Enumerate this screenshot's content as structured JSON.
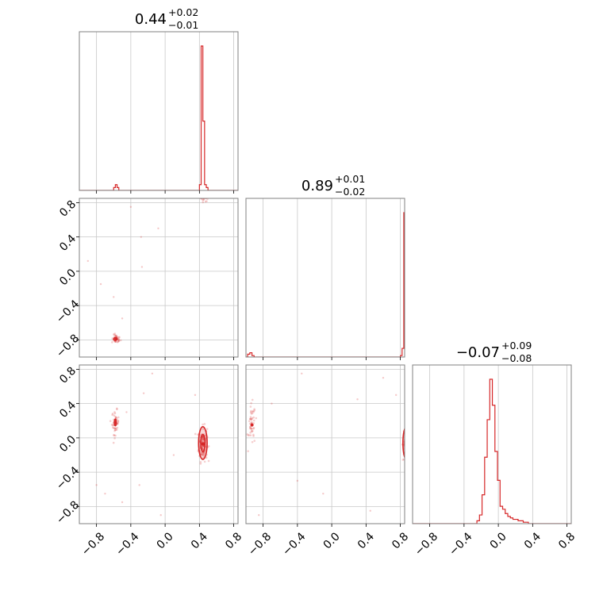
{
  "colors": {
    "accent": "#d62728",
    "grid": "#c8c8c8",
    "frame": "#808080",
    "text": "#000000"
  },
  "tick_labels": [
    "−0.8",
    "−0.4",
    "0.0",
    "0.4",
    "0.8"
  ],
  "titles": [
    {
      "value": "0.44",
      "plus": "+0.02",
      "minus": "−0.01"
    },
    {
      "value": "0.89",
      "plus": "+0.01",
      "minus": "−0.02"
    },
    {
      "value": "−0.07",
      "plus": "+0.09",
      "minus": "−0.08"
    }
  ],
  "chart_data": {
    "type": "corner",
    "parameters": 3,
    "axis_range": [
      -1.0,
      0.85
    ],
    "ticks": [
      -0.8,
      -0.4,
      0.0,
      0.4,
      0.8
    ],
    "grid": true,
    "histograms": [
      {
        "parameter": 0,
        "median": 0.44,
        "err_plus": 0.02,
        "err_minus": 0.01,
        "bins": [
          [
            -0.6,
            -0.58,
            0.02
          ],
          [
            -0.58,
            -0.56,
            0.04
          ],
          [
            -0.56,
            -0.54,
            0.02
          ],
          [
            0.4,
            0.42,
            0.04
          ],
          [
            0.42,
            0.44,
            1.0
          ],
          [
            0.44,
            0.46,
            0.48
          ],
          [
            0.46,
            0.48,
            0.04
          ],
          [
            0.48,
            0.5,
            0.02
          ]
        ]
      },
      {
        "parameter": 1,
        "median": 0.89,
        "err_plus": 0.01,
        "err_minus": 0.02,
        "bins": [
          [
            -0.98,
            -0.955,
            0.02
          ],
          [
            -0.955,
            -0.93,
            0.03
          ],
          [
            -0.93,
            -0.905,
            0.01
          ],
          [
            0.8,
            0.82,
            0.01
          ],
          [
            0.82,
            0.84,
            0.06
          ],
          [
            0.84,
            0.86,
            1.0
          ],
          [
            0.86,
            0.88,
            1.0
          ],
          [
            0.88,
            0.9,
            0.03
          ]
        ]
      },
      {
        "parameter": 2,
        "median": -0.07,
        "err_plus": 0.09,
        "err_minus": 0.08,
        "bins": [
          [
            -0.25,
            -0.22,
            0.02
          ],
          [
            -0.22,
            -0.19,
            0.06
          ],
          [
            -0.19,
            -0.16,
            0.2
          ],
          [
            -0.16,
            -0.13,
            0.46
          ],
          [
            -0.13,
            -0.1,
            0.72
          ],
          [
            -0.1,
            -0.07,
            1.0
          ],
          [
            -0.07,
            -0.04,
            0.82
          ],
          [
            -0.04,
            -0.01,
            0.5
          ],
          [
            -0.01,
            0.02,
            0.3
          ],
          [
            0.02,
            0.05,
            0.12
          ],
          [
            0.05,
            0.08,
            0.1
          ],
          [
            0.08,
            0.11,
            0.07
          ],
          [
            0.11,
            0.14,
            0.05
          ],
          [
            0.14,
            0.17,
            0.04
          ],
          [
            0.17,
            0.2,
            0.03
          ],
          [
            0.2,
            0.23,
            0.03
          ],
          [
            0.23,
            0.26,
            0.02
          ],
          [
            0.26,
            0.29,
            0.02
          ],
          [
            0.29,
            0.32,
            0.01
          ],
          [
            0.32,
            0.35,
            0.01
          ]
        ]
      }
    ],
    "scatter_panels": [
      {
        "x_param": 0,
        "y_param": 1,
        "clusters": [
          {
            "x": 0.45,
            "y": 0.88,
            "sx": 0.03,
            "sy": 0.03,
            "tilt": -0.3,
            "n": 70
          },
          {
            "x": -0.57,
            "y": -0.79,
            "sx": 0.025,
            "sy": 0.025,
            "tilt": 0.0,
            "n": 40
          }
        ],
        "outliers": [
          [
            -0.75,
            -0.15
          ],
          [
            -0.6,
            -0.3
          ],
          [
            -0.28,
            0.4
          ],
          [
            -0.27,
            0.05
          ],
          [
            -0.4,
            0.75
          ],
          [
            -0.08,
            0.5
          ],
          [
            -0.9,
            0.12
          ],
          [
            -0.5,
            -0.55
          ]
        ],
        "contours": [
          {
            "x": 0.45,
            "y": 0.88,
            "rx": 0.045,
            "ry": 0.028
          },
          {
            "x": -0.58,
            "y": -0.79,
            "rx": 0.02,
            "ry": 0.015
          }
        ]
      },
      {
        "x_param": 0,
        "y_param": 2,
        "clusters": [
          {
            "x": 0.44,
            "y": -0.07,
            "sx": 0.025,
            "sy": 0.1,
            "tilt": 0.0,
            "n": 130
          },
          {
            "x": -0.58,
            "y": 0.18,
            "sx": 0.02,
            "sy": 0.07,
            "tilt": 0.0,
            "n": 50
          }
        ],
        "outliers": [
          [
            -0.8,
            -0.55
          ],
          [
            -0.7,
            -0.65
          ],
          [
            -0.5,
            -0.75
          ],
          [
            -0.3,
            -0.55
          ],
          [
            -0.45,
            0.3
          ],
          [
            -0.25,
            0.52
          ],
          [
            0.1,
            -0.2
          ],
          [
            -0.05,
            -0.9
          ],
          [
            0.35,
            0.5
          ],
          [
            -0.15,
            0.75
          ]
        ],
        "contours": [
          {
            "x": 0.44,
            "y": -0.06,
            "rx": 0.05,
            "ry": 0.19
          },
          {
            "x": 0.44,
            "y": -0.06,
            "rx": 0.025,
            "ry": 0.1
          },
          {
            "x": -0.58,
            "y": 0.18,
            "rx": 0.01,
            "ry": 0.04
          }
        ]
      },
      {
        "x_param": 1,
        "y_param": 2,
        "clusters": [
          {
            "x": 0.87,
            "y": -0.07,
            "sx": 0.02,
            "sy": 0.1,
            "tilt": 0.0,
            "n": 120
          },
          {
            "x": -0.93,
            "y": 0.15,
            "sx": 0.02,
            "sy": 0.12,
            "tilt": 0.0,
            "n": 50
          }
        ],
        "outliers": [
          [
            -0.7,
            0.4
          ],
          [
            -0.4,
            -0.5
          ],
          [
            -0.1,
            -0.65
          ],
          [
            0.3,
            0.45
          ],
          [
            -0.35,
            0.75
          ],
          [
            0.6,
            0.7
          ],
          [
            0.45,
            -0.85
          ],
          [
            0.75,
            0.5
          ],
          [
            -0.85,
            -0.9
          ]
        ],
        "contours": [
          {
            "x": 0.87,
            "y": -0.06,
            "rx": 0.04,
            "ry": 0.19
          },
          {
            "x": 0.87,
            "y": -0.06,
            "rx": 0.02,
            "ry": 0.1
          }
        ]
      }
    ]
  }
}
